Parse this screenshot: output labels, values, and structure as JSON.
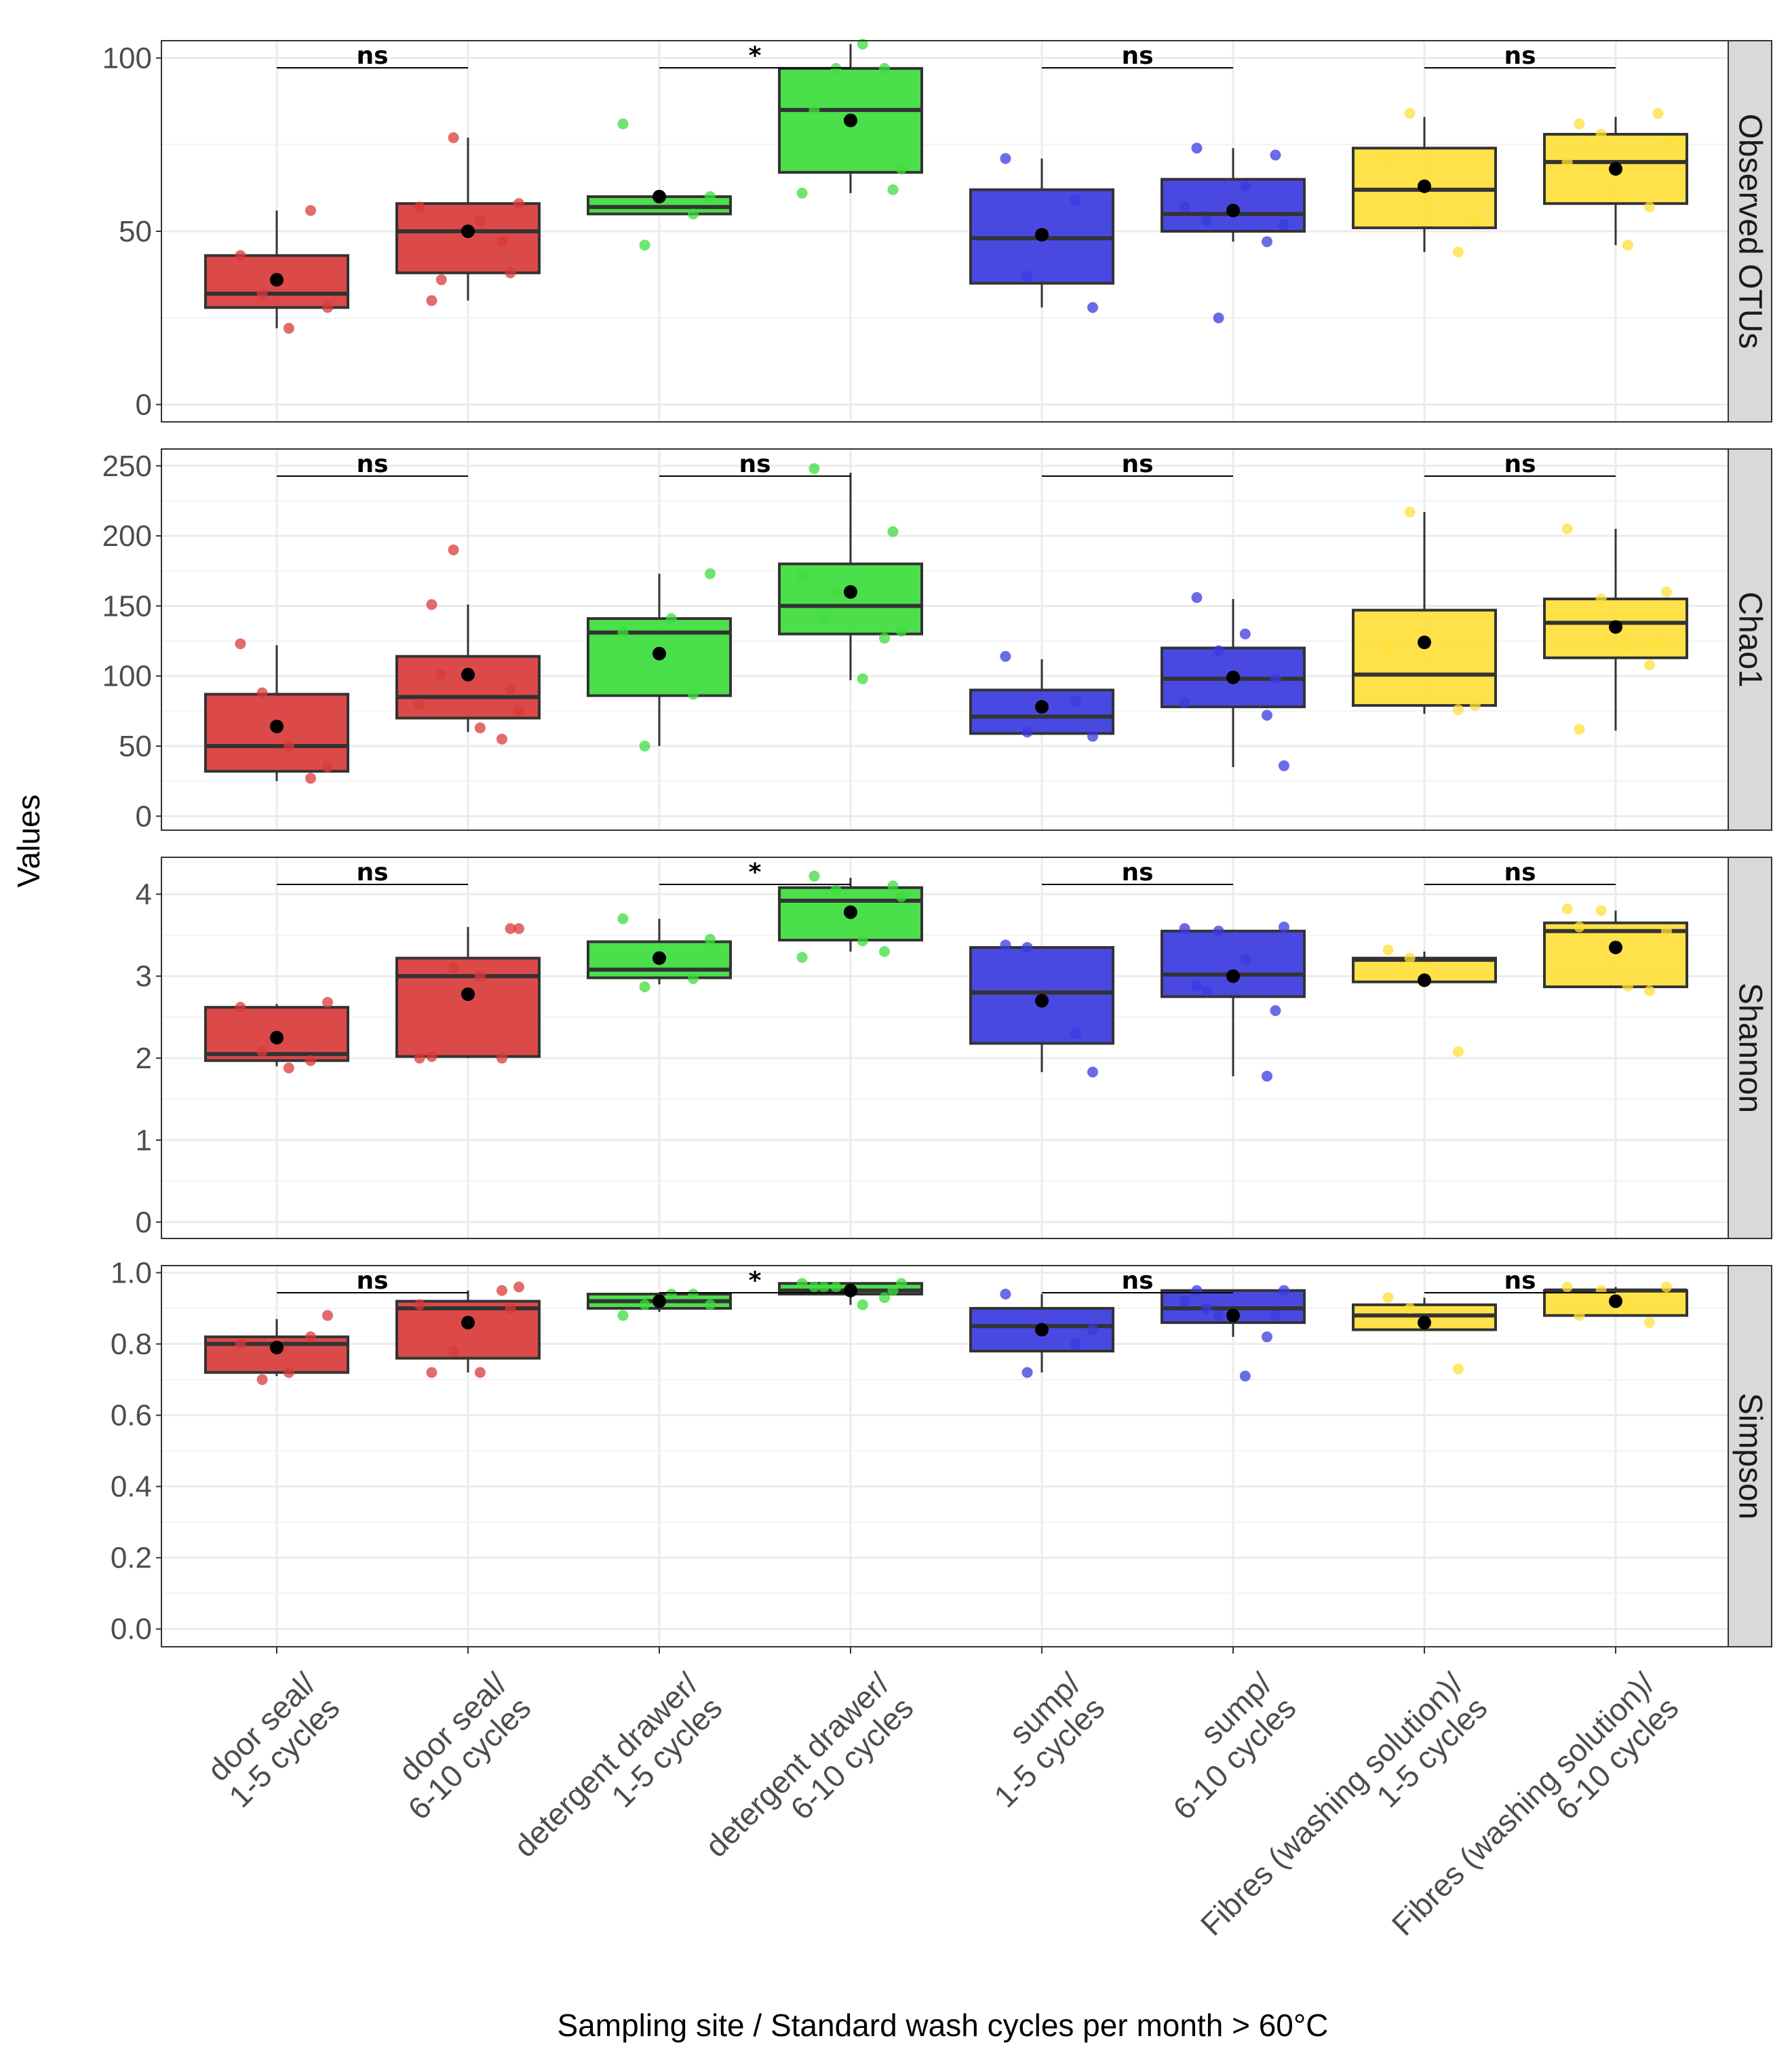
{
  "chart_data": {
    "type": "boxplot",
    "ylabel": "Values",
    "xlabel": "Sampling site / Standard wash cycles per month > 60°C",
    "categories": [
      {
        "line1": "door seal/",
        "line2": "1-5 cycles"
      },
      {
        "line1": "door seal/",
        "line2": "6-10 cycles"
      },
      {
        "line1": "detergent drawer/",
        "line2": "1-5 cycles"
      },
      {
        "line1": "detergent drawer/",
        "line2": "6-10 cycles"
      },
      {
        "line1": "sump/",
        "line2": "1-5 cycles"
      },
      {
        "line1": "sump/",
        "line2": "6-10 cycles"
      },
      {
        "line1": "Fibres (washing solution)/",
        "line2": "1-5 cycles"
      },
      {
        "line1": "Fibres (washing solution)/",
        "line2": "6-10 cycles"
      }
    ],
    "colors": [
      "#d93a3a",
      "#d93a3a",
      "#3ddc3d",
      "#3ddc3d",
      "#3a3ae0",
      "#3a3ae0",
      "#ffdf3a",
      "#ffdf3a"
    ],
    "panels": [
      {
        "name": "Observed OTUs",
        "ylim": [
          -5,
          105
        ],
        "yticks": [
          0,
          50,
          100
        ],
        "ytick_labels": [
          "0",
          "50",
          "100"
        ],
        "boxes": [
          {
            "q1": 28,
            "median": 32,
            "q3": 43,
            "wlo": 22,
            "whi": 56,
            "mean": 36,
            "points": [
              43,
              56,
              32,
              28,
              22
            ]
          },
          {
            "q1": 38,
            "median": 50,
            "q3": 58,
            "wlo": 30,
            "whi": 77,
            "mean": 50,
            "points": [
              30,
              47,
              77,
              58,
              53,
              57,
              38,
              36
            ]
          },
          {
            "q1": 55,
            "median": 57,
            "q3": 60,
            "wlo": 55,
            "whi": 60,
            "mean": 60,
            "points": [
              81,
              55,
              46,
              60
            ]
          },
          {
            "q1": 67,
            "median": 85,
            "q3": 97,
            "wlo": 61,
            "whi": 104,
            "mean": 82,
            "points": [
              85,
              97,
              97,
              68,
              104,
              61,
              62
            ]
          },
          {
            "q1": 35,
            "median": 48,
            "q3": 62,
            "wlo": 28,
            "whi": 71,
            "mean": 49,
            "points": [
              71,
              59,
              37,
              28
            ]
          },
          {
            "q1": 50,
            "median": 55,
            "q3": 65,
            "wlo": 47,
            "whi": 74,
            "mean": 56,
            "points": [
              74,
              47,
              25,
              52,
              63,
              57,
              72,
              53
            ]
          },
          {
            "q1": 51,
            "median": 62,
            "q3": 74,
            "wlo": 44,
            "whi": 83,
            "mean": 63,
            "points": [
              71,
              44,
              84,
              53
            ]
          },
          {
            "q1": 58,
            "median": 70,
            "q3": 78,
            "wlo": 46,
            "whi": 83,
            "mean": 68,
            "points": [
              81,
              57,
              78,
              76,
              46,
              70,
              84
            ]
          }
        ],
        "comparisons": [
          {
            "pair": [
              0,
              1
            ],
            "label": "ns"
          },
          {
            "pair": [
              2,
              3
            ],
            "label": "*"
          },
          {
            "pair": [
              4,
              5
            ],
            "label": "ns"
          },
          {
            "pair": [
              6,
              7
            ],
            "label": "ns"
          }
        ]
      },
      {
        "name": "Chao1",
        "ylim": [
          -10,
          262
        ],
        "yticks": [
          0,
          50,
          100,
          150,
          200,
          250
        ],
        "ytick_labels": [
          "0",
          "50",
          "100",
          "150",
          "200",
          "250"
        ],
        "boxes": [
          {
            "q1": 32,
            "median": 50,
            "q3": 87,
            "wlo": 25,
            "whi": 122,
            "mean": 64,
            "points": [
              123,
              27,
              88,
              35,
              50
            ]
          },
          {
            "q1": 70,
            "median": 85,
            "q3": 114,
            "wlo": 60,
            "whi": 151,
            "mean": 101,
            "points": [
              151,
              55,
              190,
              75,
              63,
              80,
              90,
              101
            ]
          },
          {
            "q1": 86,
            "median": 131,
            "q3": 141,
            "wlo": 50,
            "whi": 173,
            "mean": 116,
            "points": [
              131,
              87,
              50,
              173,
              141
            ]
          },
          {
            "q1": 130,
            "median": 150,
            "q3": 180,
            "wlo": 97,
            "whi": 245,
            "mean": 160,
            "points": [
              248,
              127,
              160,
              132,
              98,
              172,
              203,
              141
            ]
          },
          {
            "q1": 59,
            "median": 71,
            "q3": 90,
            "wlo": 58,
            "whi": 112,
            "mean": 78,
            "points": [
              114,
              82,
              60,
              57
            ]
          },
          {
            "q1": 78,
            "median": 98,
            "q3": 120,
            "wlo": 35,
            "whi": 155,
            "mean": 99,
            "points": [
              156,
              72,
              118,
              36,
              130,
              81,
              98
            ]
          },
          {
            "q1": 79,
            "median": 101,
            "q3": 147,
            "wlo": 73,
            "whi": 217,
            "mean": 124,
            "points": [
              122,
              76,
              217,
              79
            ]
          },
          {
            "q1": 113,
            "median": 138,
            "q3": 155,
            "wlo": 61,
            "whi": 205,
            "mean": 135,
            "points": [
              62,
              108,
              155,
              160,
              123,
              205,
              123
            ]
          }
        ],
        "comparisons": [
          {
            "pair": [
              0,
              1
            ],
            "label": "ns"
          },
          {
            "pair": [
              2,
              3
            ],
            "label": "ns"
          },
          {
            "pair": [
              4,
              5
            ],
            "label": "ns"
          },
          {
            "pair": [
              6,
              7
            ],
            "label": "ns"
          }
        ]
      },
      {
        "name": "Shannon",
        "ylim": [
          -0.2,
          4.45
        ],
        "yticks": [
          0,
          1,
          2,
          3,
          4
        ],
        "ytick_labels": [
          "0",
          "1",
          "2",
          "3",
          "4"
        ],
        "boxes": [
          {
            "q1": 1.97,
            "median": 2.05,
            "q3": 2.62,
            "wlo": 1.9,
            "whi": 2.66,
            "mean": 2.25,
            "points": [
              2.62,
              1.97,
              2.08,
              2.68,
              1.88
            ]
          },
          {
            "q1": 2.02,
            "median": 3.0,
            "q3": 3.22,
            "wlo": 2.0,
            "whi": 3.6,
            "mean": 2.78,
            "points": [
              2.02,
              2.0,
              3.1,
              3.58,
              3.0,
              2.0,
              3.58
            ]
          },
          {
            "q1": 2.98,
            "median": 3.08,
            "q3": 3.42,
            "wlo": 2.9,
            "whi": 3.7,
            "mean": 3.22,
            "points": [
              3.7,
              2.97,
              2.87,
              3.45
            ]
          },
          {
            "q1": 3.44,
            "median": 3.92,
            "q3": 4.08,
            "wlo": 3.3,
            "whi": 4.2,
            "mean": 3.78,
            "points": [
              4.22,
              3.3,
              4.05,
              3.97,
              3.43,
              3.23,
              4.1
            ]
          },
          {
            "q1": 2.18,
            "median": 2.8,
            "q3": 3.35,
            "wlo": 1.83,
            "whi": 3.35,
            "mean": 2.7,
            "points": [
              3.38,
              2.3,
              3.35,
              1.83
            ]
          },
          {
            "q1": 2.75,
            "median": 3.02,
            "q3": 3.55,
            "wlo": 1.78,
            "whi": 3.55,
            "mean": 3.0,
            "points": [
              2.88,
              1.78,
              3.55,
              3.6,
              3.2,
              3.58,
              2.58,
              2.82
            ]
          },
          {
            "q1": 2.93,
            "median": 3.2,
            "q3": 3.22,
            "wlo": 2.93,
            "whi": 3.3,
            "mean": 2.95,
            "points": [
              3.32,
              2.08,
              3.22
            ]
          },
          {
            "q1": 2.87,
            "median": 3.55,
            "q3": 3.65,
            "wlo": 2.87,
            "whi": 3.8,
            "mean": 3.35,
            "points": [
              3.6,
              2.82,
              3.8,
              3.55,
              2.88,
              3.82
            ]
          }
        ],
        "comparisons": [
          {
            "pair": [
              0,
              1
            ],
            "label": "ns"
          },
          {
            "pair": [
              2,
              3
            ],
            "label": "*"
          },
          {
            "pair": [
              4,
              5
            ],
            "label": "ns"
          },
          {
            "pair": [
              6,
              7
            ],
            "label": "ns"
          }
        ]
      },
      {
        "name": "Simpson",
        "ylim": [
          -0.05,
          1.02
        ],
        "yticks": [
          0,
          0.2,
          0.4,
          0.6,
          0.8,
          1.0
        ],
        "ytick_labels": [
          "0.0",
          "0.2",
          "0.4",
          "0.6",
          "0.8",
          "1.0"
        ],
        "boxes": [
          {
            "q1": 0.72,
            "median": 0.8,
            "q3": 0.82,
            "wlo": 0.71,
            "whi": 0.87,
            "mean": 0.79,
            "points": [
              0.8,
              0.82,
              0.7,
              0.88,
              0.72
            ]
          },
          {
            "q1": 0.76,
            "median": 0.9,
            "q3": 0.92,
            "wlo": 0.72,
            "whi": 0.95,
            "mean": 0.86,
            "points": [
              0.72,
              0.95,
              0.78,
              0.96,
              0.72,
              0.91,
              0.9
            ]
          },
          {
            "q1": 0.9,
            "median": 0.92,
            "q3": 0.94,
            "wlo": 0.89,
            "whi": 0.94,
            "mean": 0.92,
            "points": [
              0.88,
              0.94,
              0.91,
              0.91,
              0.94
            ]
          },
          {
            "q1": 0.94,
            "median": 0.95,
            "q3": 0.97,
            "wlo": 0.91,
            "whi": 0.97,
            "mean": 0.95,
            "points": [
              0.96,
              0.93,
              0.96,
              0.97,
              0.91,
              0.97,
              0.95,
              0.96
            ]
          },
          {
            "q1": 0.78,
            "median": 0.85,
            "q3": 0.9,
            "wlo": 0.72,
            "whi": 0.94,
            "mean": 0.84,
            "points": [
              0.94,
              0.8,
              0.72,
              0.84
            ]
          },
          {
            "q1": 0.86,
            "median": 0.9,
            "q3": 0.95,
            "wlo": 0.82,
            "whi": 0.95,
            "mean": 0.88,
            "points": [
              0.95,
              0.82,
              0.88,
              0.95,
              0.71,
              0.92,
              0.88,
              0.9
            ]
          },
          {
            "q1": 0.84,
            "median": 0.88,
            "q3": 0.91,
            "wlo": 0.84,
            "whi": 0.93,
            "mean": 0.86,
            "points": [
              0.93,
              0.73,
              0.9
            ]
          },
          {
            "q1": 0.88,
            "median": 0.95,
            "q3": 0.95,
            "wlo": 0.88,
            "whi": 0.96,
            "mean": 0.92,
            "points": [
              0.88,
              0.86,
              0.95,
              0.96,
              0.9,
              0.96
            ]
          }
        ],
        "comparisons": [
          {
            "pair": [
              0,
              1
            ],
            "label": "ns"
          },
          {
            "pair": [
              2,
              3
            ],
            "label": "*"
          },
          {
            "pair": [
              4,
              5
            ],
            "label": "ns"
          },
          {
            "pair": [
              6,
              7
            ],
            "label": "ns"
          }
        ]
      }
    ]
  }
}
